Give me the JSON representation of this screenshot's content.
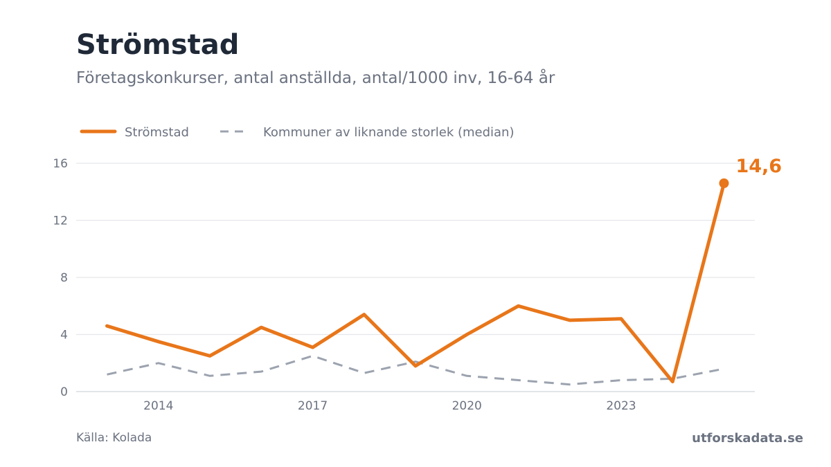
{
  "header": {
    "title": "Strömstad",
    "subtitle": "Företagskonkurser, antal anställda, antal/1000 inv, 16-64 år"
  },
  "footer": {
    "source": "Källa: Kolada",
    "brand": "utforskadata.se"
  },
  "colors": {
    "primary": "#e8761a",
    "median": "#9ca3af",
    "grid": "#e5e7eb",
    "text_muted": "#6b7280",
    "title": "#1f2937"
  },
  "chart_data": {
    "type": "line",
    "x": [
      2013,
      2014,
      2015,
      2016,
      2017,
      2018,
      2019,
      2020,
      2021,
      2022,
      2023,
      2024,
      2025
    ],
    "x_ticks": [
      "2014",
      "2017",
      "2020",
      "2023"
    ],
    "x_tick_values": [
      2014,
      2017,
      2020,
      2023
    ],
    "y_ticks": [
      "0",
      "4",
      "8",
      "12",
      "16"
    ],
    "y_tick_values": [
      0,
      4,
      8,
      12,
      16
    ],
    "ylim": [
      0,
      16
    ],
    "xlim": [
      2012.4,
      2025.6
    ],
    "grid": true,
    "legend_placement": "top-left",
    "series": [
      {
        "name": "Strömstad",
        "style": "solid",
        "color": "#e8761a",
        "values": [
          4.6,
          3.5,
          2.5,
          4.5,
          3.1,
          5.4,
          1.8,
          4.0,
          6.0,
          5.0,
          5.1,
          0.7,
          14.6
        ]
      },
      {
        "name": "Kommuner av liknande storlek (median)",
        "style": "dashed",
        "color": "#9ca3af",
        "values": [
          1.2,
          2.0,
          1.1,
          1.4,
          2.5,
          1.3,
          2.1,
          1.1,
          0.8,
          0.5,
          0.8,
          0.9,
          1.6
        ]
      }
    ],
    "last_value_label": "14,6"
  }
}
